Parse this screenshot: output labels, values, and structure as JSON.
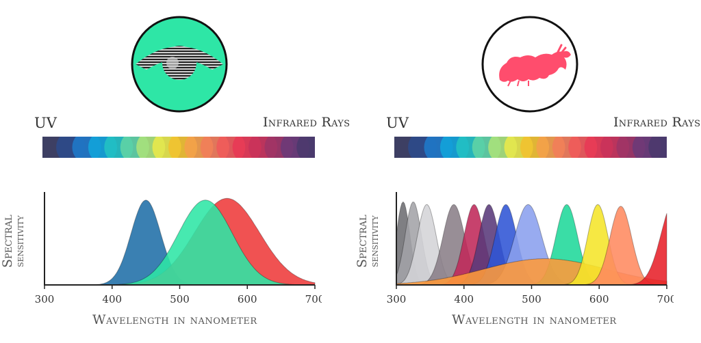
{
  "left": {
    "uv_label": "UV",
    "ir_label": "Infrared Rays",
    "ylabel_line1": "Spectral",
    "ylabel_line2": "sensitivity",
    "xlabel": "Wavelength in nanometer",
    "icon": "human-eye-icon",
    "icon_bg": "#2ee6a6"
  },
  "right": {
    "uv_label": "UV",
    "ir_label": "Infrared Rays",
    "ylabel_line1": "Spectral",
    "ylabel_line2": "sensitivity",
    "xlabel": "Wavelength in nanometer",
    "icon": "mantis-shrimp-icon",
    "icon_color": "#ff4d6d"
  },
  "spectrum_colors": [
    "#3d3f63",
    "#2c4a8a",
    "#1f78c8",
    "#12a3d9",
    "#22c1c3",
    "#5fd3a5",
    "#a9e27a",
    "#e8e84a",
    "#f2c230",
    "#f4a04a",
    "#f27d5a",
    "#f05a5a",
    "#e83a55",
    "#c9335b",
    "#9e3466",
    "#6b3a78",
    "#4b3a6e"
  ],
  "chart_data": [
    {
      "type": "area",
      "x_range": [
        300,
        700
      ],
      "ticks": [
        "300",
        "400",
        "500",
        "600",
        "700"
      ],
      "series": [
        {
          "color": "#1f6fa8",
          "peak": 450,
          "width": 22,
          "height": 0.97
        },
        {
          "color": "#ee3b3b",
          "peak": 570,
          "width": 48,
          "height": 0.99
        },
        {
          "color": "#2ee6a6",
          "peak": 538,
          "width": 40,
          "height": 0.97
        }
      ]
    },
    {
      "type": "area",
      "x_range": [
        300,
        700
      ],
      "ticks": [
        "300",
        "400",
        "500",
        "600",
        "700"
      ],
      "series": [
        {
          "color": "#6e6e72",
          "peak": 310,
          "width": 10,
          "height": 0.95
        },
        {
          "color": "#a3a3a8",
          "peak": 325,
          "width": 12,
          "height": 0.95
        },
        {
          "color": "#d4d4d8",
          "peak": 345,
          "width": 14,
          "height": 0.92
        },
        {
          "color": "#8a7f88",
          "peak": 385,
          "width": 16,
          "height": 0.92
        },
        {
          "color": "#c0295a",
          "peak": 415,
          "width": 15,
          "height": 0.92
        },
        {
          "color": "#5a3a7a",
          "peak": 437,
          "width": 15,
          "height": 0.92
        },
        {
          "color": "#2f55d6",
          "peak": 462,
          "width": 16,
          "height": 0.92
        },
        {
          "color": "#8aa0ee",
          "peak": 495,
          "width": 20,
          "height": 0.92
        },
        {
          "color": "#1fd99a",
          "peak": 552,
          "width": 16,
          "height": 0.92
        },
        {
          "color": "#ff9a3a",
          "peak": 520,
          "width": 90,
          "height": 0.3
        },
        {
          "color": "#f5e52a",
          "peak": 598,
          "width": 15,
          "height": 0.92
        },
        {
          "color": "#ff8a60",
          "peak": 632,
          "width": 16,
          "height": 0.9
        },
        {
          "color": "#e8202a",
          "peak": 712,
          "width": 20,
          "height": 0.98
        }
      ]
    }
  ]
}
